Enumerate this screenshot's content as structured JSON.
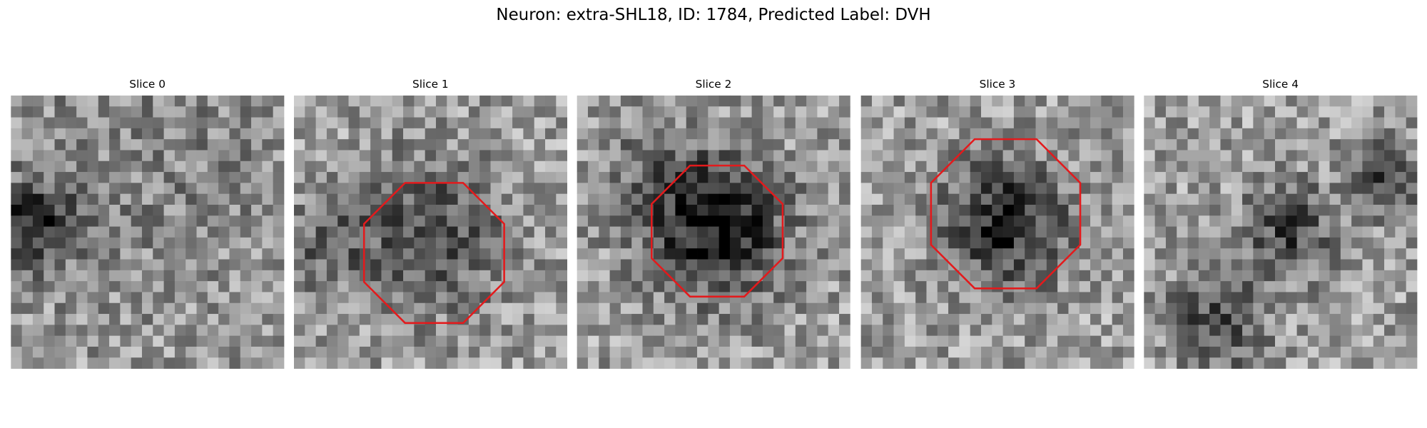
{
  "header": {
    "title": "Neuron: extra-SHL18, ID: 1784, Predicted Label: DVH"
  },
  "panels": [
    {
      "title": "Slice 0"
    },
    {
      "title": "Slice 1"
    },
    {
      "title": "Slice 2"
    },
    {
      "title": "Slice 3"
    },
    {
      "title": "Slice 4"
    }
  ]
}
